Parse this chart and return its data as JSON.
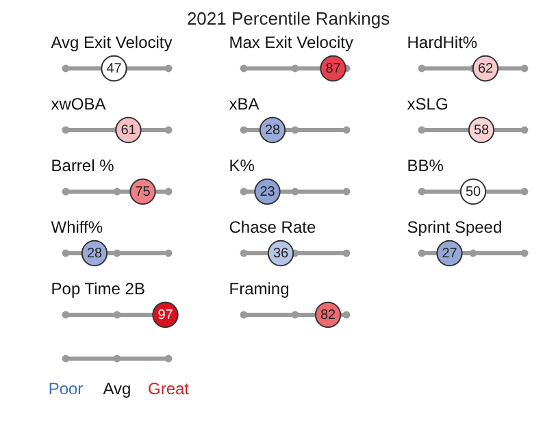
{
  "chart_data": {
    "type": "other",
    "title": "2021 Percentile Rankings",
    "categories": [
      "Avg Exit Velocity",
      "Max Exit Velocity",
      "HardHit%",
      "xwOBA",
      "xBA",
      "xSLG",
      "Barrel %",
      "K%",
      "BB%",
      "Whiff%",
      "Chase Rate",
      "Sprint Speed",
      "Pop Time 2B",
      "Framing"
    ],
    "values": [
      47,
      87,
      62,
      61,
      28,
      58,
      75,
      23,
      50,
      28,
      36,
      27,
      97,
      82
    ],
    "colors": [
      "#ffffff",
      "#e8404c",
      "#f6c9cc",
      "#f5c0c4",
      "#9aabd8",
      "#f7d3d6",
      "#ef7f85",
      "#8ea2d4",
      "#ffffff",
      "#9aabd8",
      "#b9c5e6",
      "#95a8d6",
      "#d9121f",
      "#ec6a70"
    ],
    "data_labels": true,
    "annotations": [
      "Poor",
      "Avg",
      "Great"
    ]
  }
}
